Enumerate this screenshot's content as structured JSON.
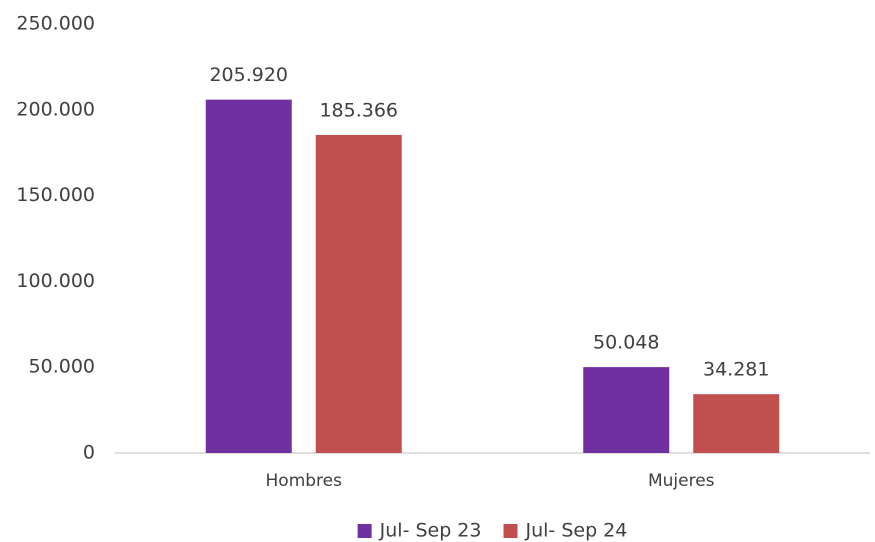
{
  "chart_data": {
    "type": "bar",
    "categories": [
      "Hombres",
      "Mujeres"
    ],
    "series": [
      {
        "name": "Jul- Sep 23",
        "color": "#7030a0",
        "values": [
          205920,
          50048
        ],
        "value_labels": [
          "205.920",
          "50.048"
        ]
      },
      {
        "name": "Jul- Sep 24",
        "color": "#c0504d",
        "values": [
          185366,
          34281
        ],
        "value_labels": [
          "185.366",
          "34.281"
        ]
      }
    ],
    "ylim": [
      0,
      250000
    ],
    "yticks": [
      0,
      {
        "value": 50000,
        "label": "50.000"
      },
      {
        "value": 100000,
        "label": "100.000"
      },
      {
        "value": 150000,
        "label": "150.000"
      },
      {
        "value": 200000,
        "label": "200.000"
      },
      {
        "value": 250000,
        "label": "250.000"
      }
    ],
    "grid": false,
    "legend": "bottom"
  }
}
